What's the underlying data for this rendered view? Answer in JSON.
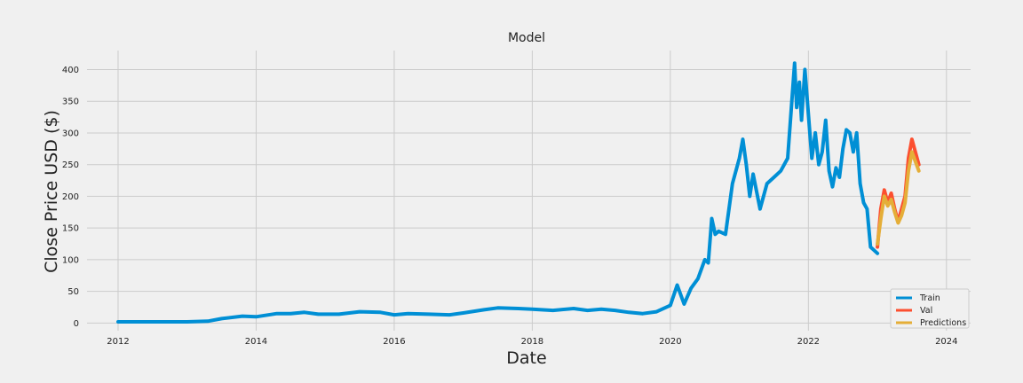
{
  "chart_data": {
    "type": "line",
    "title": "Model",
    "xlabel": "Date",
    "ylabel": "Close Price USD ($)",
    "xlim": [
      2011.55,
      2024.35
    ],
    "ylim": [
      -12,
      430
    ],
    "x_ticks": [
      2012,
      2014,
      2016,
      2018,
      2020,
      2022,
      2024
    ],
    "x_tick_labels": [
      "2012",
      "2014",
      "2016",
      "2018",
      "2020",
      "2022",
      "2024"
    ],
    "y_ticks": [
      0,
      50,
      100,
      150,
      200,
      250,
      300,
      350,
      400
    ],
    "y_tick_labels": [
      "0",
      "50",
      "100",
      "150",
      "200",
      "250",
      "300",
      "350",
      "400"
    ],
    "grid": true,
    "legend_position": "lower-right",
    "series": [
      {
        "name": "Train",
        "color": "#008fd5",
        "x": [
          2012.0,
          2012.5,
          2013.0,
          2013.3,
          2013.5,
          2013.8,
          2014.0,
          2014.3,
          2014.5,
          2014.7,
          2014.9,
          2015.2,
          2015.5,
          2015.8,
          2016.0,
          2016.2,
          2016.5,
          2016.8,
          2017.0,
          2017.3,
          2017.5,
          2017.8,
          2018.0,
          2018.3,
          2018.6,
          2018.8,
          2019.0,
          2019.2,
          2019.4,
          2019.6,
          2019.8,
          2020.0,
          2020.1,
          2020.2,
          2020.3,
          2020.4,
          2020.5,
          2020.55,
          2020.6,
          2020.65,
          2020.7,
          2020.8,
          2020.9,
          2021.0,
          2021.05,
          2021.1,
          2021.15,
          2021.2,
          2021.3,
          2021.4,
          2021.5,
          2021.6,
          2021.7,
          2021.8,
          2021.83,
          2021.87,
          2021.9,
          2021.95,
          2022.0,
          2022.05,
          2022.1,
          2022.15,
          2022.2,
          2022.25,
          2022.3,
          2022.35,
          2022.4,
          2022.45,
          2022.5,
          2022.55,
          2022.6,
          2022.65,
          2022.7,
          2022.75,
          2022.8,
          2022.85,
          2022.9,
          2022.95,
          2023.0
        ],
        "y": [
          2,
          2,
          2,
          3,
          7,
          11,
          10,
          15,
          15,
          17,
          14,
          14,
          18,
          17,
          13,
          15,
          14,
          13,
          16,
          21,
          24,
          23,
          22,
          20,
          23,
          20,
          22,
          20,
          17,
          15,
          18,
          28,
          60,
          30,
          55,
          70,
          100,
          95,
          165,
          140,
          145,
          140,
          220,
          260,
          290,
          250,
          200,
          235,
          180,
          220,
          230,
          240,
          260,
          410,
          340,
          380,
          320,
          400,
          330,
          260,
          300,
          250,
          270,
          320,
          240,
          215,
          245,
          230,
          275,
          305,
          300,
          270,
          300,
          220,
          190,
          180,
          120,
          115,
          110
        ]
      },
      {
        "name": "Val",
        "color": "#fc4f30",
        "x": [
          2023.0,
          2023.05,
          2023.1,
          2023.15,
          2023.2,
          2023.25,
          2023.3,
          2023.35,
          2023.4,
          2023.45,
          2023.5,
          2023.55,
          2023.6
        ],
        "y": [
          120,
          180,
          210,
          190,
          205,
          180,
          160,
          180,
          200,
          260,
          290,
          270,
          250
        ]
      },
      {
        "name": "Predictions",
        "color": "#e5ae38",
        "x": [
          2023.0,
          2023.05,
          2023.1,
          2023.15,
          2023.2,
          2023.25,
          2023.3,
          2023.35,
          2023.4,
          2023.45,
          2023.5,
          2023.55,
          2023.6
        ],
        "y": [
          125,
          165,
          200,
          185,
          195,
          175,
          158,
          170,
          190,
          240,
          270,
          255,
          240
        ]
      }
    ]
  }
}
